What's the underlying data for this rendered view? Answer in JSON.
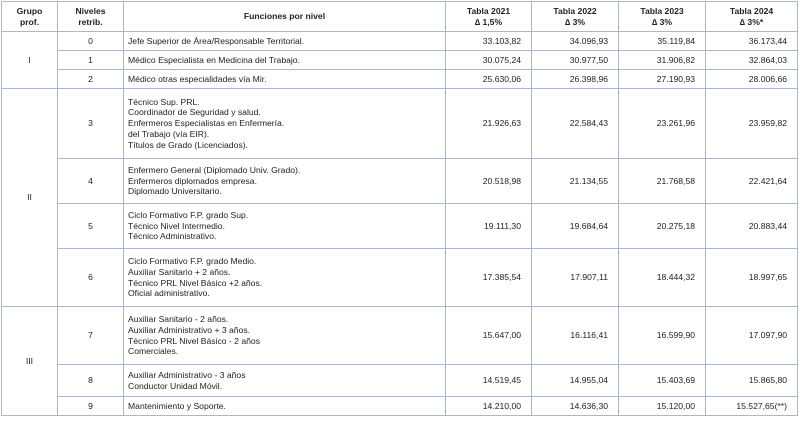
{
  "header": {
    "group": [
      "Grupo",
      "prof."
    ],
    "level": [
      "Niveles",
      "retrib."
    ],
    "functions": "Funciones por nivel",
    "years": [
      {
        "title": "Tabla 2021",
        "delta": "∆ 1,5%"
      },
      {
        "title": "Tabla 2022",
        "delta": "∆ 3%"
      },
      {
        "title": "Tabla 2023",
        "delta": "∆ 3%"
      },
      {
        "title": "Tabla 2024",
        "delta": "∆ 3%*"
      }
    ]
  },
  "groups": [
    {
      "name": "I",
      "rows": [
        {
          "level": "0",
          "functions": [
            "Jefe Superior de Área/Responsable Territorial."
          ],
          "values": [
            "33.103,82",
            "34.096,93",
            "35.119,84",
            "36.173,44"
          ]
        },
        {
          "level": "1",
          "functions": [
            "Médico Especialista en Medicina del Trabajo."
          ],
          "values": [
            "30.075,24",
            "30.977,50",
            "31.906,82",
            "32.864,03"
          ]
        },
        {
          "level": "2",
          "functions": [
            "Médico otras especialidades vía Mir."
          ],
          "values": [
            "25.630,06",
            "26.398,96",
            "27.190,93",
            "28.006,66"
          ]
        }
      ]
    },
    {
      "name": "II",
      "rows": [
        {
          "level": "3",
          "functions": [
            "Técnico Sup. PRL.",
            "Coordinador de Seguridad y salud.",
            "Enfermeros Especialistas en Enfermería.",
            "del Trabajo (vía EIR).",
            "Títulos de Grado (Licenciados)."
          ],
          "values": [
            "21.926,63",
            "22.584,43",
            "23.261,96",
            "23.959,82"
          ]
        },
        {
          "level": "4",
          "functions": [
            "Enfermero General (Diplomado Univ. Grado).",
            "Enfermeros diplomados empresa.",
            "Diplomado Universitario."
          ],
          "values": [
            "20.518,98",
            "21.134,55",
            "21.768,58",
            "22.421,64"
          ]
        },
        {
          "level": "5",
          "functions": [
            "Ciclo Formativo F.P. grado Sup.",
            "Técnico Nivel Intermedio.",
            "Técnico Administrativo."
          ],
          "values": [
            "19.111,30",
            "19.684,64",
            "20.275,18",
            "20.883,44"
          ]
        },
        {
          "level": "6",
          "functions": [
            "Ciclo Formativo F.P. grado Medio.",
            "Auxiliar Sanitario + 2 años.",
            "Técnico PRL Nivel Básico +2 años.",
            "Oficial administrativo."
          ],
          "values": [
            "17.385,54",
            "17.907,11",
            "18.444,32",
            "18.997,65"
          ]
        }
      ]
    },
    {
      "name": "III",
      "rows": [
        {
          "level": "7",
          "functions": [
            "Auxiliar Sanitario - 2 años.",
            "Auxiliar Administrativo + 3 años.",
            "Técnico PRL Nivel Básico - 2 años",
            "Comerciales."
          ],
          "values": [
            "15.647,00",
            "16.116,41",
            "16.599,90",
            "17.097,90"
          ]
        },
        {
          "level": "8",
          "functions": [
            "Auxiliar Administrativo - 3 años",
            "Conductor Unidad Móvil."
          ],
          "values": [
            "14.519,45",
            "14.955,04",
            "15.403,69",
            "15.865,80"
          ]
        },
        {
          "level": "9",
          "functions": [
            "Mantenimiento y Soporte."
          ],
          "values": [
            "14.210,00",
            "14.636,30",
            "15.120,00",
            "15.527,65(**)"
          ]
        }
      ]
    }
  ]
}
